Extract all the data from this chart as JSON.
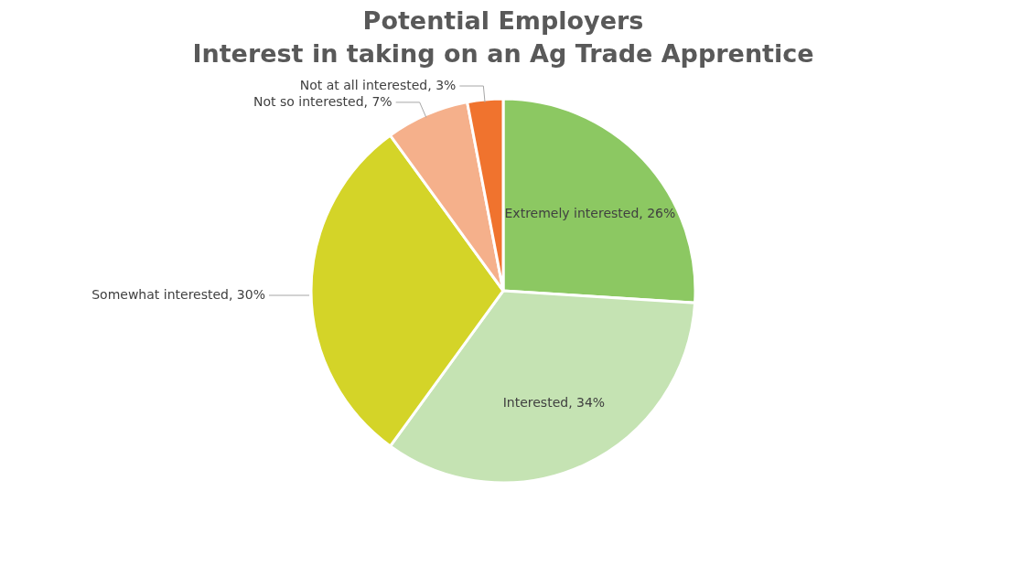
{
  "chart_data": {
    "type": "pie",
    "title": "Potential Employers\nInterest in taking on an Ag Trade Apprentice",
    "categories": [
      "Extremely interested",
      "Interested",
      "Somewhat interested",
      "Not so interested",
      "Not at all interested"
    ],
    "values": [
      26,
      34,
      30,
      7,
      3
    ],
    "value_labels": [
      "26%",
      "34%",
      "30%",
      "7%",
      "3%"
    ],
    "colors": [
      "#8cc862",
      "#c5e3b3",
      "#d4d428",
      "#f5b08b",
      "#f0732e"
    ]
  }
}
